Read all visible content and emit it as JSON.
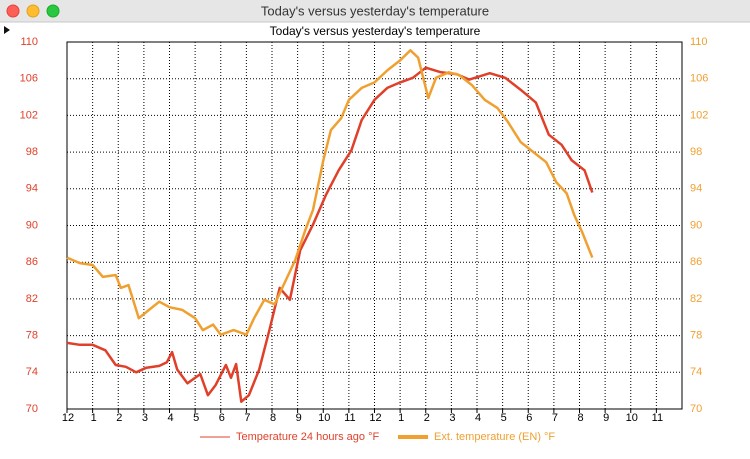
{
  "window": {
    "title": "Today's versus yesterday's temperature"
  },
  "chart_data": {
    "type": "line",
    "title": "Today's versus yesterday's temperature",
    "xlim": [
      0,
      24
    ],
    "xticks": [
      {
        "value": 0,
        "label": "12"
      },
      {
        "value": 1,
        "label": "1"
      },
      {
        "value": 2,
        "label": "2"
      },
      {
        "value": 3,
        "label": "3"
      },
      {
        "value": 4,
        "label": "4"
      },
      {
        "value": 5,
        "label": "5"
      },
      {
        "value": 6,
        "label": "6"
      },
      {
        "value": 7,
        "label": "7"
      },
      {
        "value": 8,
        "label": "8"
      },
      {
        "value": 9,
        "label": "9"
      },
      {
        "value": 10,
        "label": "10"
      },
      {
        "value": 11,
        "label": "11"
      },
      {
        "value": 12,
        "label": "12"
      },
      {
        "value": 13,
        "label": "1"
      },
      {
        "value": 14,
        "label": "2"
      },
      {
        "value": 15,
        "label": "3"
      },
      {
        "value": 16,
        "label": "4"
      },
      {
        "value": 17,
        "label": "5"
      },
      {
        "value": 18,
        "label": "6"
      },
      {
        "value": 19,
        "label": "7"
      },
      {
        "value": 20,
        "label": "8"
      },
      {
        "value": 21,
        "label": "9"
      },
      {
        "value": 22,
        "label": "10"
      },
      {
        "value": 23,
        "label": "11"
      }
    ],
    "ylim": [
      70,
      110
    ],
    "yticks": [
      70,
      74,
      78,
      82,
      86,
      90,
      94,
      98,
      102,
      106,
      110
    ],
    "y2lim": [
      70,
      110
    ],
    "y2ticks": [
      70,
      74,
      78,
      82,
      86,
      90,
      94,
      98,
      102,
      106,
      110
    ],
    "grid": true,
    "legend": "bottom",
    "series": [
      {
        "name": "Temperature 24 hours ago °F",
        "color": "#e0402a",
        "x": [
          0,
          0.5,
          1,
          1.5,
          1.9,
          2.3,
          2.7,
          3.1,
          3.6,
          3.9,
          4.1,
          4.3,
          4.7,
          5.2,
          5.5,
          5.8,
          6.2,
          6.4,
          6.6,
          6.8,
          7.1,
          7.5,
          7.9,
          8.3,
          8.7,
          9.1,
          9.6,
          10.1,
          10.6,
          11.1,
          11.5,
          12.0,
          12.5,
          13.0,
          13.5,
          14.0,
          14.6,
          15.2,
          15.7,
          16.5,
          17.1,
          17.7,
          18.3,
          18.8,
          19.3,
          19.7,
          20.2,
          20.5
        ],
        "values": [
          77.2,
          77.0,
          77.0,
          76.4,
          74.8,
          74.6,
          74.0,
          74.5,
          74.7,
          75.1,
          76.2,
          74.3,
          72.8,
          73.8,
          71.5,
          72.6,
          74.8,
          73.4,
          74.9,
          70.8,
          71.5,
          74.3,
          78.6,
          83.2,
          81.9,
          87.3,
          90.1,
          93.3,
          96.0,
          98.2,
          101.5,
          103.7,
          105.0,
          105.6,
          106.1,
          107.2,
          106.7,
          106.5,
          105.9,
          106.6,
          106.1,
          104.8,
          103.4,
          99.9,
          98.8,
          97.1,
          96.0,
          93.6
        ]
      },
      {
        "name": "Ext. temperature (EN) °F",
        "color": "#f0a030",
        "axis": "y2",
        "x": [
          0,
          0.5,
          1.0,
          1.4,
          1.9,
          2.1,
          2.4,
          2.8,
          3.2,
          3.6,
          4.0,
          4.5,
          5.0,
          5.3,
          5.7,
          6.0,
          6.5,
          7.0,
          7.3,
          7.7,
          8.1,
          8.5,
          8.9,
          9.3,
          9.6,
          10.0,
          10.3,
          10.7,
          11.0,
          11.5,
          12.0,
          12.5,
          13.0,
          13.4,
          13.7,
          14.1,
          14.4,
          14.9,
          15.3,
          15.8,
          16.3,
          16.8,
          17.2,
          17.7,
          18.2,
          18.7,
          19.1,
          19.5,
          19.8,
          20.1,
          20.5
        ],
        "values": [
          86.5,
          85.9,
          85.7,
          84.4,
          84.6,
          83.2,
          83.5,
          79.9,
          80.8,
          81.7,
          81.1,
          80.8,
          79.9,
          78.6,
          79.2,
          78.1,
          78.6,
          78.1,
          79.9,
          81.9,
          81.4,
          83.8,
          86.2,
          89.5,
          91.7,
          97.1,
          100.4,
          101.7,
          103.7,
          105.0,
          105.6,
          106.9,
          108.0,
          109.1,
          108.3,
          103.9,
          106.1,
          106.7,
          106.4,
          105.3,
          103.7,
          102.8,
          101.3,
          99.1,
          98.0,
          96.9,
          94.7,
          93.5,
          91.1,
          89.3,
          86.5
        ]
      }
    ]
  }
}
